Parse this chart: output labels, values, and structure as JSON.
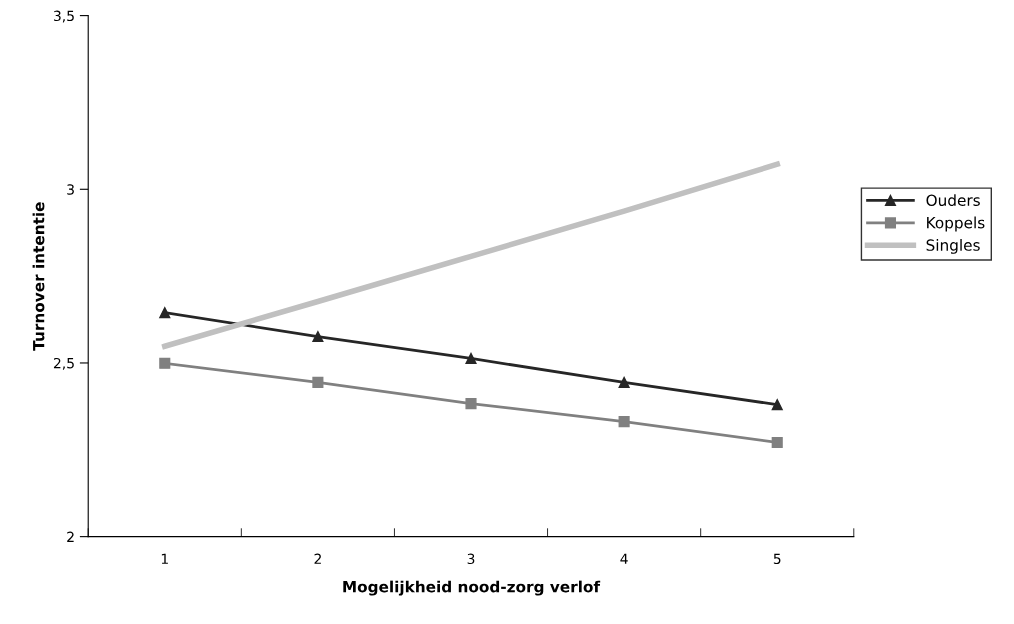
{
  "chart_data": {
    "type": "line",
    "xlabel": "Mogelijkheid nood-zorg verlof",
    "ylabel": "Turnover intentie",
    "categories": [
      "1",
      "2",
      "3",
      "4",
      "5"
    ],
    "series": [
      {
        "name": "Ouders",
        "color": "#262626",
        "marker": "triangle",
        "values": [
          2.645,
          2.576,
          2.513,
          2.444,
          2.38
        ]
      },
      {
        "name": "Koppels",
        "color": "#808080",
        "marker": "square",
        "values": [
          2.499,
          2.444,
          2.383,
          2.331,
          2.271
        ]
      },
      {
        "name": "Singles",
        "color": "#c0c0c0",
        "marker": "none",
        "values": [
          2.548,
          2.677,
          2.807,
          2.937,
          3.072
        ]
      }
    ],
    "ylim": [
      2,
      3.5
    ],
    "yticks": [
      2,
      {
        "value": 2.5,
        "label": "2,5"
      },
      3,
      {
        "value": 3.5,
        "label": "3,5"
      }
    ],
    "grid": false,
    "legend": "right"
  }
}
